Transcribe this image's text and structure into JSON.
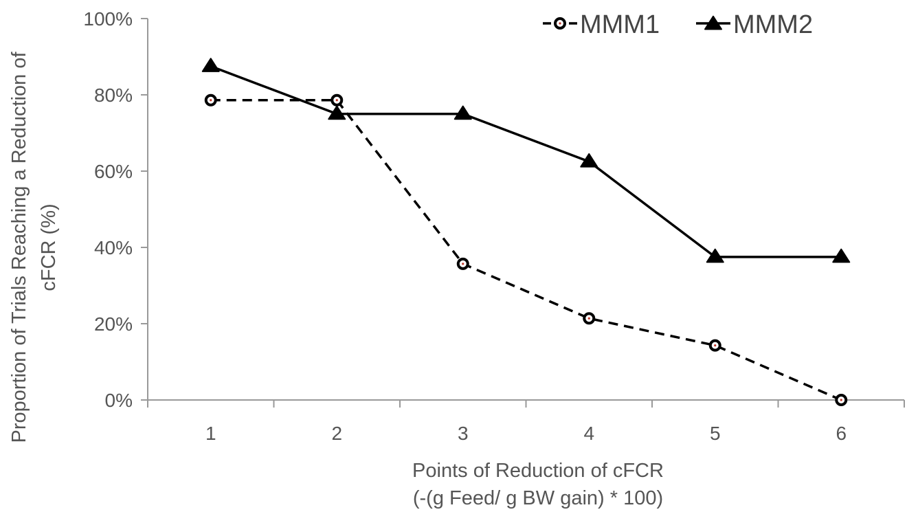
{
  "chart_data": {
    "type": "line",
    "categories": [
      "1",
      "2",
      "3",
      "4",
      "5",
      "6"
    ],
    "series": [
      {
        "name": "MMM1",
        "values": [
          78.6,
          78.6,
          35.7,
          21.4,
          14.3,
          0.0
        ],
        "line_style": "dashed",
        "marker": "circle",
        "color": "#000000"
      },
      {
        "name": "MMM2",
        "values": [
          87.5,
          75.0,
          75.0,
          62.5,
          37.5,
          37.5
        ],
        "line_style": "solid",
        "marker": "triangle",
        "color": "#000000"
      }
    ],
    "ylim": [
      0,
      100
    ],
    "yticks": [
      "0%",
      "20%",
      "40%",
      "60%",
      "80%",
      "100%"
    ],
    "ylabel_lines": [
      "Proportion of Trials Reaching a Reduction of",
      "cFCR  (%)"
    ],
    "xlabel_lines": [
      "Points of Reduction of cFCR",
      "(-(g Feed/ g BW gain) * 100)"
    ],
    "legend_position": "top-right",
    "grid": false
  }
}
